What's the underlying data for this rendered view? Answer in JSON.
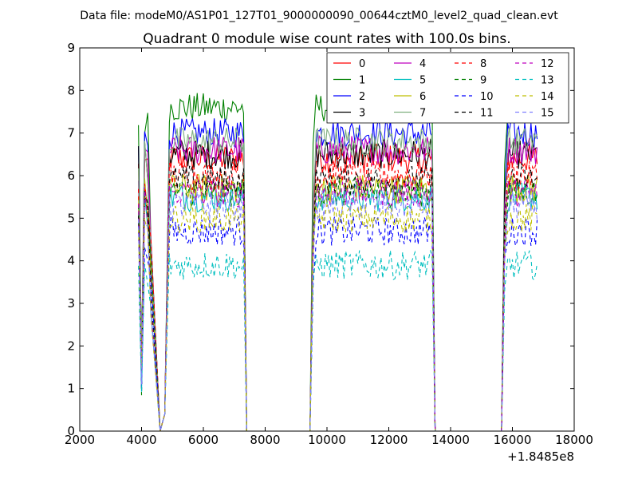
{
  "chart_data": {
    "type": "line",
    "suptitle": "Data file: modeM0/AS1P01_127T01_9000000090_00644cztM0_level2_quad_clean.evt",
    "title": "Quadrant 0 module wise count rates with 100.0s bins.",
    "xlabel": "",
    "ylabel": "",
    "x_offset_label": "+1.8485e8",
    "xlim": [
      2000,
      18000
    ],
    "ylim": [
      0,
      9
    ],
    "xticks": [
      2000,
      4000,
      6000,
      8000,
      10000,
      12000,
      14000,
      16000,
      18000
    ],
    "yticks": [
      0,
      1,
      2,
      3,
      4,
      5,
      6,
      7,
      8,
      9
    ],
    "grid": false,
    "legend_position": "top-right",
    "legend_columns": 4,
    "segments": [
      {
        "start": 3900,
        "end": 7300
      },
      {
        "start": 9500,
        "end": 13400
      },
      {
        "start": 15700,
        "end": 16800
      }
    ],
    "series": [
      {
        "name": "0",
        "color": "#ff0000",
        "dash": "solid",
        "level": 6.4
      },
      {
        "name": "1",
        "color": "#008000",
        "dash": "solid",
        "level": 7.6
      },
      {
        "name": "2",
        "color": "#0000ff",
        "dash": "solid",
        "level": 7.0
      },
      {
        "name": "3",
        "color": "#000000",
        "dash": "solid",
        "level": 6.5
      },
      {
        "name": "4",
        "color": "#bf00bf",
        "dash": "solid",
        "level": 6.6
      },
      {
        "name": "5",
        "color": "#00bfbf",
        "dash": "solid",
        "level": 5.5
      },
      {
        "name": "6",
        "color": "#bfbf00",
        "dash": "solid",
        "level": 5.7
      },
      {
        "name": "7",
        "color": "#80b080",
        "dash": "solid",
        "level": 6.8
      },
      {
        "name": "8",
        "color": "#ff0000",
        "dash": "dashed",
        "level": 6.0
      },
      {
        "name": "9",
        "color": "#008000",
        "dash": "dashed",
        "level": 5.6
      },
      {
        "name": "10",
        "color": "#0000ff",
        "dash": "dashed",
        "level": 4.7
      },
      {
        "name": "11",
        "color": "#000000",
        "dash": "dashed",
        "level": 5.9
      },
      {
        "name": "12",
        "color": "#bf00bf",
        "dash": "dashed",
        "level": 5.6
      },
      {
        "name": "13",
        "color": "#00bfbf",
        "dash": "dashed",
        "level": 3.9
      },
      {
        "name": "14",
        "color": "#bfbf00",
        "dash": "dashed",
        "level": 5.0
      },
      {
        "name": "15",
        "color": "#8080ff",
        "dash": "dashed",
        "level": 5.3
      }
    ]
  }
}
